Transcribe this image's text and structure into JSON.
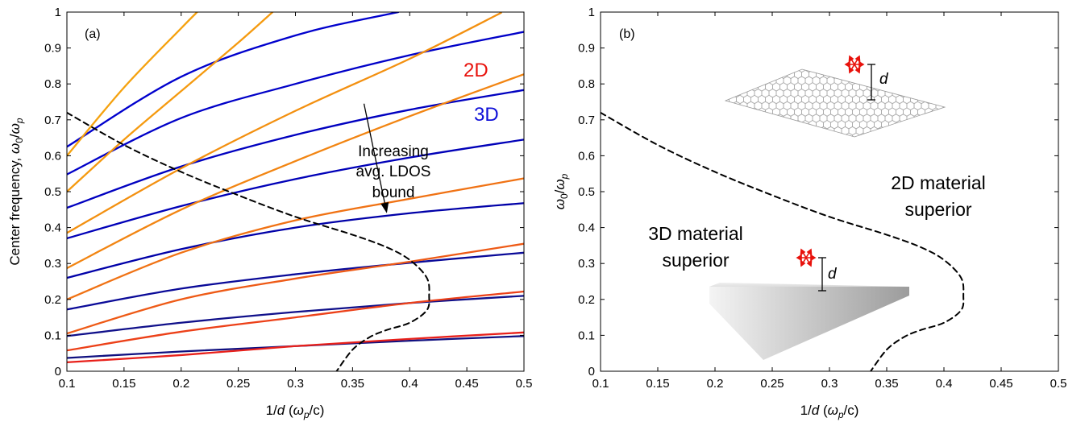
{
  "chart_data": [
    {
      "type": "line",
      "panel_label": "(a)",
      "xlim": [
        0.1,
        0.5
      ],
      "ylim": [
        0,
        1
      ],
      "xticks": [
        "0.1",
        "0.15",
        "0.2",
        "0.25",
        "0.3",
        "0.35",
        "0.4",
        "0.45",
        "0.5"
      ],
      "yticks": [
        "0",
        "0.1",
        "0.2",
        "0.3",
        "0.4",
        "0.5",
        "0.6",
        "0.7",
        "0.8",
        "0.9",
        "1"
      ],
      "xlabel": {
        "prefix": "1/",
        "var": "d",
        "open": " (",
        "omega": "ω",
        "sub": "p",
        "rest": "/c)"
      },
      "ylabel": {
        "prefix": "Center frequency, ",
        "omega": "ω",
        "sub0": "0",
        "slash": "/",
        "omega2": "ω",
        "subp": "p"
      },
      "grid": false,
      "legend": {
        "labels": [
          "2D",
          "3D"
        ],
        "colors": [
          "#e8120c",
          "#1010d8"
        ],
        "placement": "top-right"
      },
      "annotation": {
        "lines": [
          "Increasing",
          "avg. LDOS",
          "bound"
        ],
        "arrow": {
          "from": [
            0.36,
            0.745
          ],
          "to": [
            0.38,
            0.44
          ]
        }
      },
      "series": [
        {
          "group": "3D",
          "color": "#0000cd",
          "x": [
            0.1,
            0.2,
            0.3,
            0.39
          ],
          "y": [
            0.625,
            0.82,
            0.935,
            1.0
          ]
        },
        {
          "group": "3D",
          "color": "#0000c8",
          "x": [
            0.1,
            0.2,
            0.3,
            0.4,
            0.5
          ],
          "y": [
            0.548,
            0.705,
            0.8,
            0.88,
            0.945
          ]
        },
        {
          "group": "3D",
          "color": "#0000c0",
          "x": [
            0.1,
            0.2,
            0.3,
            0.4,
            0.5
          ],
          "y": [
            0.455,
            0.57,
            0.658,
            0.728,
            0.783
          ]
        },
        {
          "group": "3D",
          "color": "#0000b8",
          "x": [
            0.1,
            0.2,
            0.3,
            0.4,
            0.5
          ],
          "y": [
            0.37,
            0.46,
            0.535,
            0.595,
            0.645
          ]
        },
        {
          "group": "3D",
          "color": "#0000a8",
          "x": [
            0.1,
            0.2,
            0.3,
            0.4,
            0.5
          ],
          "y": [
            0.26,
            0.34,
            0.4,
            0.44,
            0.468
          ]
        },
        {
          "group": "3D",
          "color": "#0a0a98",
          "x": [
            0.1,
            0.2,
            0.3,
            0.4,
            0.5
          ],
          "y": [
            0.172,
            0.23,
            0.27,
            0.302,
            0.33
          ]
        },
        {
          "group": "3D",
          "color": "#10108a",
          "x": [
            0.1,
            0.2,
            0.3,
            0.4,
            0.5
          ],
          "y": [
            0.098,
            0.135,
            0.165,
            0.19,
            0.21
          ]
        },
        {
          "group": "3D",
          "color": "#101080",
          "x": [
            0.1,
            0.2,
            0.3,
            0.4,
            0.5
          ],
          "y": [
            0.037,
            0.055,
            0.07,
            0.085,
            0.098
          ]
        },
        {
          "group": "2D",
          "color": "#f5a20f",
          "x": [
            0.1,
            0.15,
            0.2,
            0.214
          ],
          "y": [
            0.6,
            0.79,
            0.955,
            1.0
          ]
        },
        {
          "group": "2D",
          "color": "#f59a0f",
          "x": [
            0.1,
            0.15,
            0.2,
            0.25,
            0.28
          ],
          "y": [
            0.5,
            0.645,
            0.78,
            0.915,
            1.0
          ]
        },
        {
          "group": "2D",
          "color": "#f39010",
          "x": [
            0.1,
            0.2,
            0.3,
            0.4,
            0.48
          ],
          "y": [
            0.385,
            0.565,
            0.725,
            0.87,
            0.998
          ]
        },
        {
          "group": "2D",
          "color": "#f28512",
          "x": [
            0.1,
            0.2,
            0.3,
            0.4,
            0.5
          ],
          "y": [
            0.287,
            0.45,
            0.585,
            0.71,
            0.827
          ]
        },
        {
          "group": "2D",
          "color": "#f07214",
          "x": [
            0.1,
            0.2,
            0.3,
            0.4,
            0.5
          ],
          "y": [
            0.2,
            0.33,
            0.42,
            0.48,
            0.537
          ]
        },
        {
          "group": "2D",
          "color": "#ee5a16",
          "x": [
            0.1,
            0.2,
            0.3,
            0.4,
            0.5
          ],
          "y": [
            0.105,
            0.2,
            0.258,
            0.305,
            0.355
          ]
        },
        {
          "group": "2D",
          "color": "#ec4018",
          "x": [
            0.1,
            0.2,
            0.3,
            0.4,
            0.5
          ],
          "y": [
            0.058,
            0.11,
            0.15,
            0.19,
            0.222
          ]
        },
        {
          "group": "2D",
          "color": "#e8201a",
          "x": [
            0.1,
            0.2,
            0.3,
            0.4,
            0.5
          ],
          "y": [
            0.025,
            0.045,
            0.07,
            0.09,
            0.108
          ]
        },
        {
          "group": "boundary",
          "color": "#000000",
          "dashed": true,
          "x": [
            0.1,
            0.15,
            0.2,
            0.25,
            0.3,
            0.35,
            0.38,
            0.4,
            0.415,
            0.417,
            0.415,
            0.4,
            0.38,
            0.365,
            0.35,
            0.336
          ],
          "y": [
            0.72,
            0.63,
            0.555,
            0.49,
            0.43,
            0.38,
            0.345,
            0.31,
            0.26,
            0.21,
            0.17,
            0.135,
            0.115,
            0.095,
            0.06,
            0.0
          ]
        }
      ]
    },
    {
      "type": "line",
      "panel_label": "(b)",
      "xlim": [
        0.1,
        0.5
      ],
      "ylim": [
        0,
        1
      ],
      "xticks": [
        "0.1",
        "0.15",
        "0.2",
        "0.25",
        "0.3",
        "0.35",
        "0.4",
        "0.45",
        "0.5"
      ],
      "yticks": [
        "0",
        "0.1",
        "0.2",
        "0.3",
        "0.4",
        "0.5",
        "0.6",
        "0.7",
        "0.8",
        "0.9",
        "1"
      ],
      "xlabel": {
        "prefix": "1/",
        "var": "d",
        "open": " (",
        "omega": "ω",
        "sub": "p",
        "rest": "/c)"
      },
      "ylabel": {
        "omega": "ω",
        "sub0": "0",
        "slash": "/",
        "omega2": "ω",
        "subp": "p"
      },
      "grid": false,
      "regions": [
        {
          "lines": [
            "2D material",
            "superior"
          ]
        },
        {
          "lines": [
            "3D material",
            "superior"
          ]
        }
      ],
      "inset_labels": {
        "top_distance": "d",
        "bottom_distance": "d"
      },
      "series": [
        {
          "group": "boundary",
          "color": "#000000",
          "dashed": true,
          "x": [
            0.1,
            0.15,
            0.2,
            0.25,
            0.3,
            0.35,
            0.38,
            0.4,
            0.415,
            0.417,
            0.415,
            0.4,
            0.38,
            0.365,
            0.35,
            0.336
          ],
          "y": [
            0.72,
            0.63,
            0.555,
            0.49,
            0.43,
            0.38,
            0.345,
            0.31,
            0.26,
            0.21,
            0.17,
            0.135,
            0.115,
            0.095,
            0.06,
            0.0
          ]
        }
      ]
    }
  ]
}
